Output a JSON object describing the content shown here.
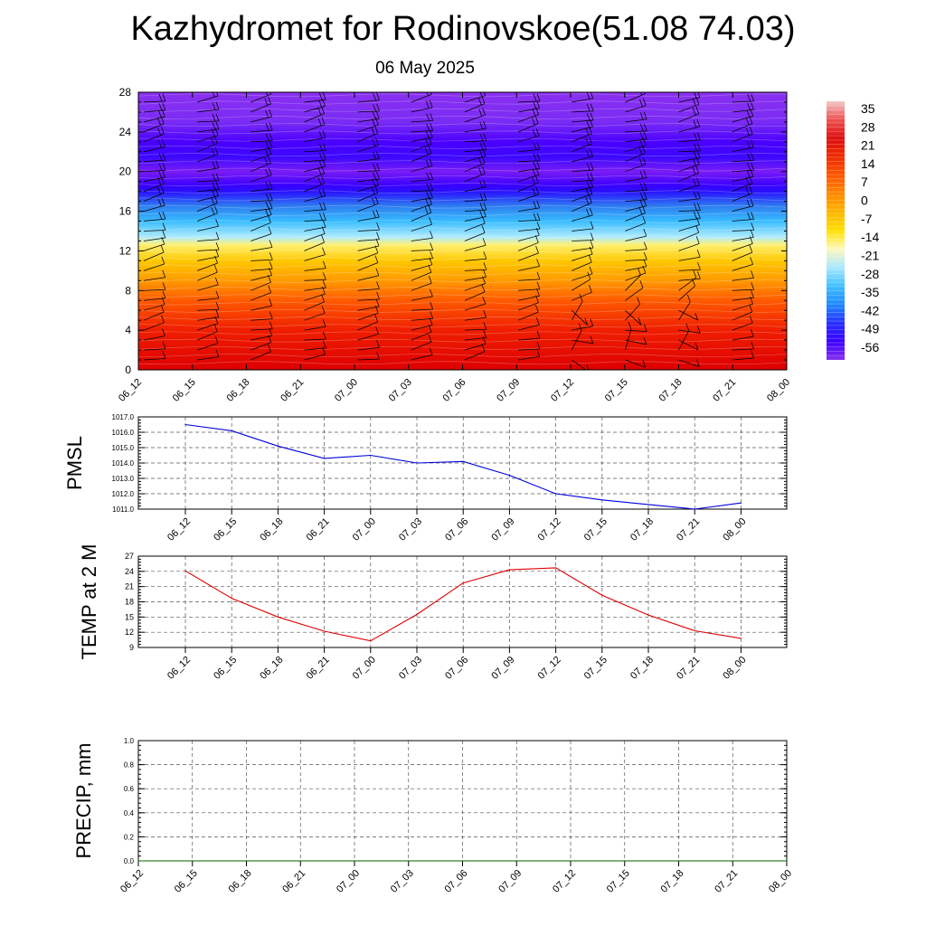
{
  "header": {
    "title": "Kazhydromet for Rodinovskoe(51.08 74.03)",
    "subtitle": "06 May 2025"
  },
  "colors": {
    "pmsl_line": "#0000dd",
    "temp_line": "#dd0000",
    "precip_line": "#006400",
    "grid": "#555555"
  },
  "chart_data": [
    {
      "type": "heatmap",
      "name": "upper-air temperature and wind cross-section",
      "title": "",
      "x_ticks": [
        "06_12",
        "06_15",
        "06_18",
        "06_21",
        "07_00",
        "07_03",
        "07_06",
        "07_09",
        "07_12",
        "07_15",
        "07_18",
        "07_21",
        "08_00"
      ],
      "y_ticks": [
        "0",
        "4",
        "8",
        "12",
        "16",
        "20",
        "24",
        "28"
      ],
      "ylim": [
        0,
        28
      ],
      "colorbar": {
        "labels": [
          "35",
          "28",
          "21",
          "14",
          "7",
          "0",
          "-7",
          "-14",
          "-21",
          "-28",
          "-35",
          "-42",
          "-49",
          "-56"
        ],
        "colors": [
          "#f2c8c8",
          "#ee5050",
          "#dd1010",
          "#ee2a00",
          "#ff5500",
          "#ff8800",
          "#ffb400",
          "#ffe100",
          "#fff8c0",
          "#a8e8ff",
          "#40c0ff",
          "#2088ff",
          "#2830ff",
          "#3a00ff",
          "#8a30f0"
        ]
      },
      "profile_bands": [
        {
          "z": 0,
          "color": "#dd0000"
        },
        {
          "z": 4,
          "color": "#f01e00"
        },
        {
          "z": 7,
          "color": "#ff5a00"
        },
        {
          "z": 9,
          "color": "#ff9a00"
        },
        {
          "z": 11,
          "color": "#ffc800"
        },
        {
          "z": 12.6,
          "color": "#fff070"
        },
        {
          "z": 13.4,
          "color": "#b0ecff"
        },
        {
          "z": 15,
          "color": "#38bcff"
        },
        {
          "z": 16.5,
          "color": "#2e7ef0"
        },
        {
          "z": 18,
          "color": "#2a10ff"
        },
        {
          "z": 18.6,
          "color": "#3a00ff"
        },
        {
          "z": 20,
          "color": "#7a1cf6"
        },
        {
          "z": 21.5,
          "color": "#3c08ff"
        },
        {
          "z": 23,
          "color": "#4a00ff"
        },
        {
          "z": 25,
          "color": "#7a2cf4"
        },
        {
          "z": 28,
          "color": "#8a30f0"
        }
      ]
    },
    {
      "type": "line",
      "ylabel": "PMSL",
      "ylim": [
        1011.0,
        1017.0
      ],
      "y_ticks": [
        "1011.0",
        "1012.0",
        "1013.0",
        "1014.0",
        "1015.0",
        "1016.0",
        "1017.0"
      ],
      "categories": [
        "06_12",
        "06_15",
        "06_18",
        "06_21",
        "07_00",
        "07_03",
        "07_06",
        "07_09",
        "07_12",
        "07_15",
        "07_18",
        "07_21",
        "08_00"
      ],
      "series": [
        {
          "values": [
            1016.5,
            1016.1,
            1015.1,
            1014.3,
            1014.5,
            1014.0,
            1014.1,
            1013.2,
            1012.0,
            1011.6,
            1011.3,
            1011.0,
            1011.4
          ]
        }
      ]
    },
    {
      "type": "line",
      "ylabel": "TEMP at 2 M",
      "ylim": [
        9,
        27
      ],
      "y_ticks": [
        "9",
        "12",
        "15",
        "18",
        "21",
        "24",
        "27"
      ],
      "categories": [
        "06_12",
        "06_15",
        "06_18",
        "06_21",
        "07_00",
        "07_03",
        "07_06",
        "07_09",
        "07_12",
        "07_15",
        "07_18",
        "07_21",
        "08_00"
      ],
      "series": [
        {
          "values": [
            24.1,
            18.7,
            15.0,
            12.2,
            10.3,
            15.5,
            21.7,
            24.3,
            24.7,
            19.3,
            15.4,
            12.3,
            10.8
          ]
        }
      ]
    },
    {
      "type": "line",
      "ylabel": "PRECIP, mm",
      "ylim": [
        0.0,
        1.0
      ],
      "y_ticks": [
        "0.0",
        "0.2",
        "0.4",
        "0.6",
        "0.8",
        "1.0"
      ],
      "categories": [
        "06_12",
        "06_15",
        "06_18",
        "06_21",
        "07_00",
        "07_03",
        "07_06",
        "07_09",
        "07_12",
        "07_15",
        "07_18",
        "07_21",
        "08_00"
      ],
      "series": [
        {
          "values": [
            0,
            0,
            0,
            0,
            0,
            0,
            0,
            0,
            0,
            0,
            0,
            0,
            0
          ]
        }
      ]
    }
  ]
}
